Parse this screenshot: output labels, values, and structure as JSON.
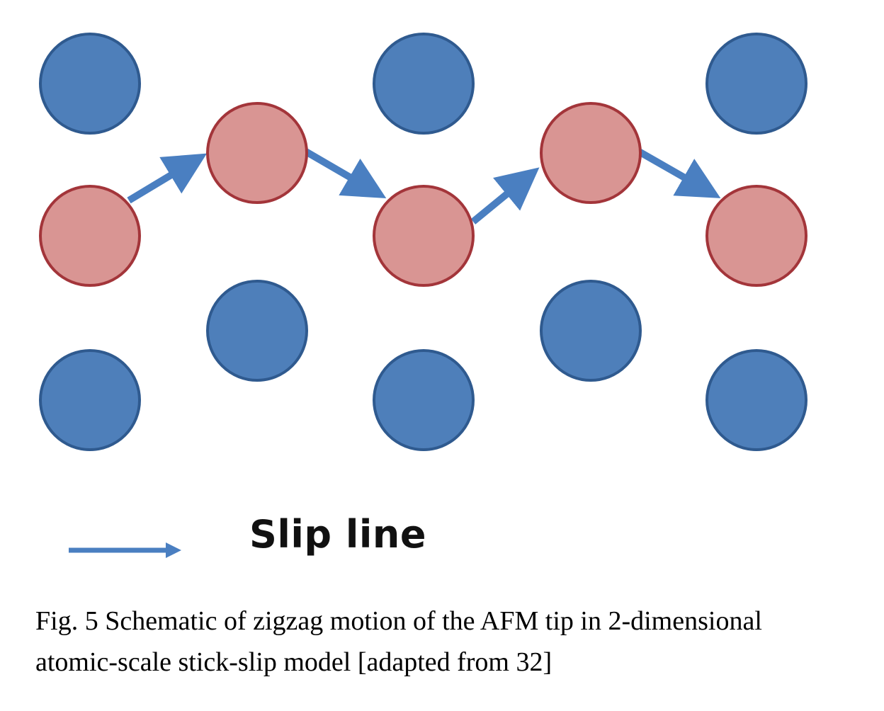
{
  "diagram": {
    "colors": {
      "substrate_fill": "#4e7fba",
      "substrate_stroke": "#2f5a8f",
      "tip_fill": "#d99593",
      "tip_stroke": "#a3353a",
      "arrow": "#4a7fc1"
    },
    "legend": {
      "label": "Slip line",
      "icon": "arrow-icon"
    }
  },
  "caption": {
    "line1": "Fig. 5 Schematic of zigzag motion of the AFM tip in 2-dimensional",
    "line2": "atomic-scale stick-slip model [adapted from 32]"
  }
}
